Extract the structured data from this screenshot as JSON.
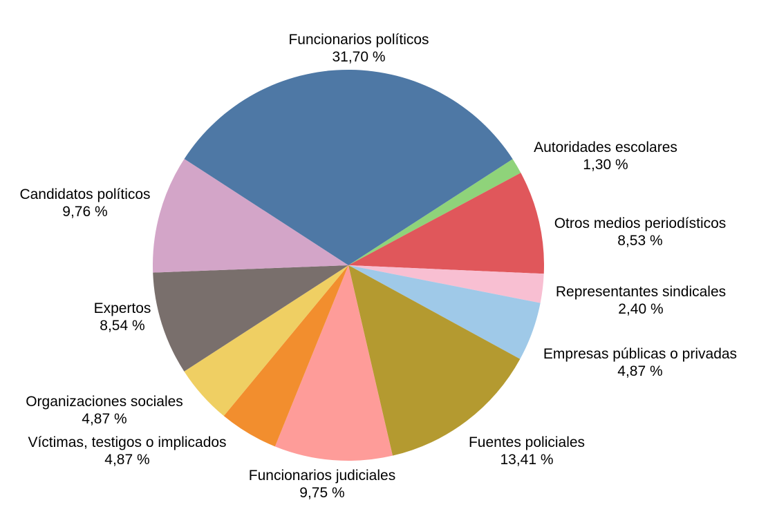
{
  "chart_data": {
    "type": "pie",
    "start_angle_deg": 32.9,
    "direction": "clockwise",
    "slices": [
      {
        "label": "Autoridades escolares",
        "value": 1.3,
        "value_text": "1,30 %",
        "color": "#8fd37a"
      },
      {
        "label": "Otros medios periodísticos",
        "value": 8.53,
        "value_text": "8,53 %",
        "color": "#e0575b"
      },
      {
        "label": "Representantes sindicales",
        "value": 2.4,
        "value_text": "2,40 %",
        "color": "#f8bfd2"
      },
      {
        "label": "Empresas públicas o privadas",
        "value": 4.87,
        "value_text": "4,87 %",
        "color": "#9fc9e8"
      },
      {
        "label": "Fuentes policiales",
        "value": 13.41,
        "value_text": "13,41 %",
        "color": "#b49a30"
      },
      {
        "label": "Funcionarios judiciales",
        "value": 9.75,
        "value_text": "9,75 %",
        "color": "#fe9c99"
      },
      {
        "label": "Víctimas, testigos o implicados",
        "value": 4.87,
        "value_text": "4,87 %",
        "color": "#f28e2e"
      },
      {
        "label": "Organizaciones sociales",
        "value": 4.87,
        "value_text": "4,87 %",
        "color": "#efcf63"
      },
      {
        "label": "Expertos",
        "value": 8.54,
        "value_text": "8,54 %",
        "color": "#796f6c"
      },
      {
        "label": "Candidatos políticos",
        "value": 9.76,
        "value_text": "9,76 %",
        "color": "#d3a5c8"
      },
      {
        "label": "Funcionarios políticos",
        "value": 31.7,
        "value_text": "31,70 %",
        "color": "#4e78a5"
      }
    ]
  }
}
